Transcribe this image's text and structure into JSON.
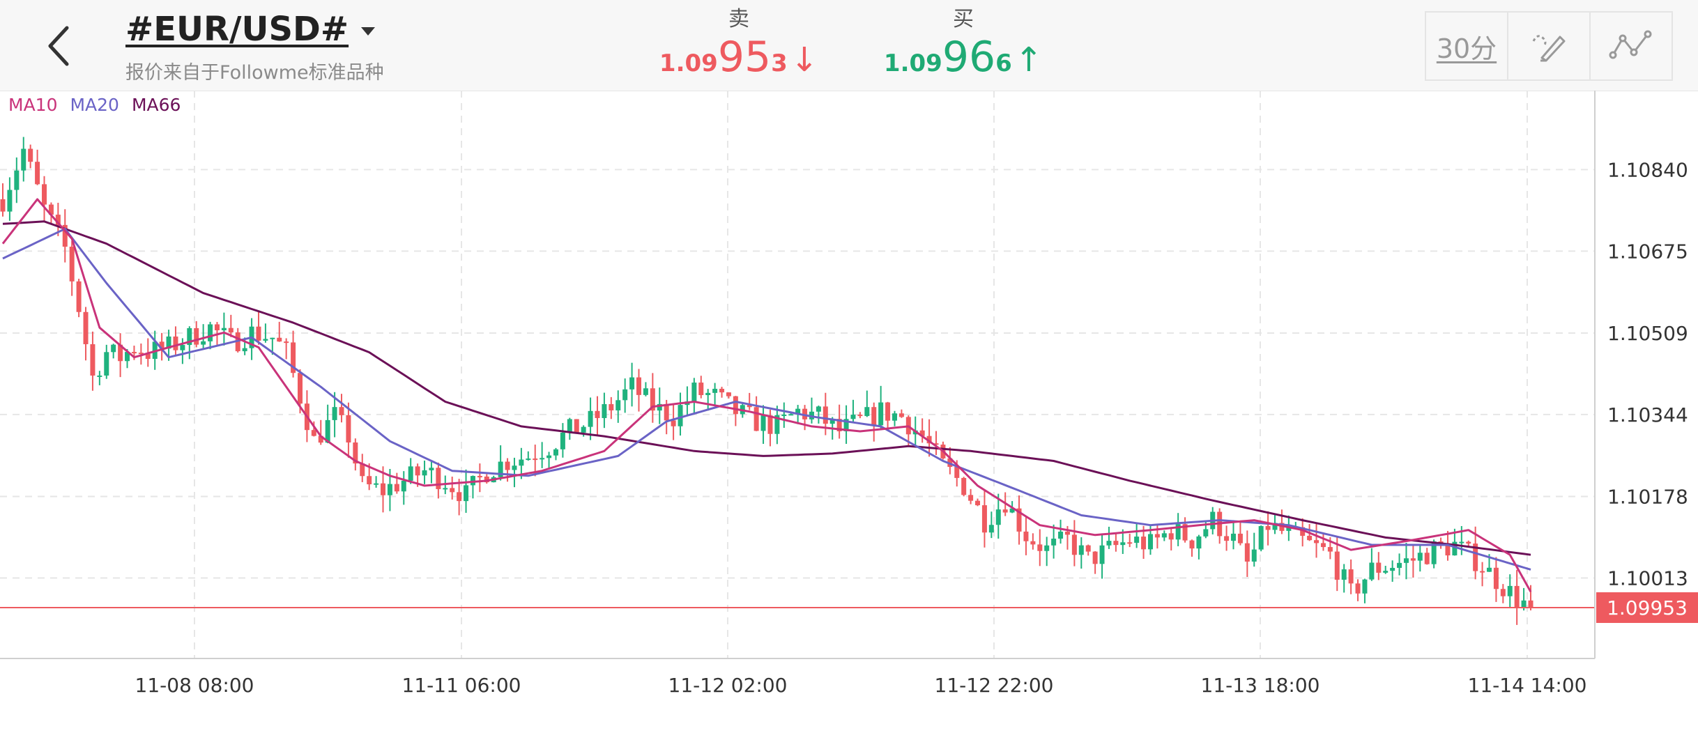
{
  "header": {
    "back_icon": "chevron-left-icon",
    "symbol": "#EUR/USD#",
    "subtitle": "报价来自于Followme标准品种",
    "sell": {
      "label": "卖",
      "prefix": "1.09",
      "big": "95",
      "suffix": "3",
      "arrow": "↓",
      "color": "#ee5a5f"
    },
    "buy": {
      "label": "买",
      "prefix": "1.09",
      "big": "96",
      "suffix": "6",
      "arrow": "↑",
      "color": "#1faa74"
    },
    "period": "30分",
    "draw_icon": "pen-draw-icon",
    "indicator_icon": "line-indicator-icon"
  },
  "legend": [
    {
      "label": "MA10",
      "color": "#c9337a"
    },
    {
      "label": "MA20",
      "color": "#6a63c6"
    },
    {
      "label": "MA66",
      "color": "#6b1057"
    }
  ],
  "chart_data": {
    "type": "candlestick",
    "x_tick_labels": [
      "11-08 08:00",
      "11-11 06:00",
      "11-12 02:00",
      "11-12 22:00",
      "11-13 18:00",
      "11-14 14:00"
    ],
    "y_tick_labels": [
      "1.10840",
      "1.10675",
      "1.10509",
      "1.10344",
      "1.10178",
      "1.10013"
    ],
    "ylim": [
      1.0985,
      1.11
    ],
    "current_price": "1.09953",
    "current_price_value": 1.09953,
    "colors": {
      "up": "#1fb27e",
      "down": "#ee5a5f",
      "price_line": "#ee5a5f",
      "grid": "#e6e6e6"
    },
    "ma10_anchors": [
      [
        0,
        1.1069
      ],
      [
        5,
        1.1078
      ],
      [
        10,
        1.107
      ],
      [
        14,
        1.1052
      ],
      [
        19,
        1.1046
      ],
      [
        24,
        1.1048
      ],
      [
        32,
        1.1051
      ],
      [
        37,
        1.1048
      ],
      [
        46,
        1.103
      ],
      [
        51,
        1.1025
      ],
      [
        56,
        1.1022
      ],
      [
        61,
        1.102
      ],
      [
        70,
        1.1021
      ],
      [
        78,
        1.1023
      ],
      [
        87,
        1.1027
      ],
      [
        94,
        1.1036
      ],
      [
        100,
        1.1037
      ],
      [
        108,
        1.1035
      ],
      [
        117,
        1.1032
      ],
      [
        124,
        1.1031
      ],
      [
        131,
        1.1032
      ],
      [
        136,
        1.1027
      ],
      [
        141,
        1.102
      ],
      [
        150,
        1.1012
      ],
      [
        158,
        1.101
      ],
      [
        166,
        1.1011
      ],
      [
        173,
        1.1012
      ],
      [
        181,
        1.1013
      ],
      [
        188,
        1.1011
      ],
      [
        195,
        1.1007
      ],
      [
        204,
        1.1009
      ],
      [
        212,
        1.1011
      ],
      [
        218,
        1.1006
      ],
      [
        221,
        1.09985
      ]
    ],
    "ma20_anchors": [
      [
        0,
        1.1066
      ],
      [
        9,
        1.1072
      ],
      [
        15,
        1.1061
      ],
      [
        24,
        1.1046
      ],
      [
        36,
        1.105
      ],
      [
        46,
        1.104
      ],
      [
        56,
        1.1029
      ],
      [
        65,
        1.1023
      ],
      [
        76,
        1.1022
      ],
      [
        89,
        1.1026
      ],
      [
        96,
        1.1033
      ],
      [
        106,
        1.1037
      ],
      [
        117,
        1.1034
      ],
      [
        127,
        1.1032
      ],
      [
        136,
        1.1025
      ],
      [
        147,
        1.1019
      ],
      [
        156,
        1.1014
      ],
      [
        166,
        1.1012
      ],
      [
        176,
        1.1013
      ],
      [
        186,
        1.1012
      ],
      [
        198,
        1.1008
      ],
      [
        209,
        1.1008
      ],
      [
        221,
        1.1003
      ]
    ],
    "ma66_anchors": [
      [
        0,
        1.1073
      ],
      [
        6,
        1.10735
      ],
      [
        15,
        1.1069
      ],
      [
        29,
        1.1059
      ],
      [
        42,
        1.1053
      ],
      [
        53,
        1.1047
      ],
      [
        64,
        1.1037
      ],
      [
        75,
        1.1032
      ],
      [
        87,
        1.103
      ],
      [
        100,
        1.1027
      ],
      [
        110,
        1.1026
      ],
      [
        120,
        1.10265
      ],
      [
        131,
        1.1028
      ],
      [
        140,
        1.1027
      ],
      [
        152,
        1.1025
      ],
      [
        163,
        1.1021
      ],
      [
        175,
        1.1017
      ],
      [
        188,
        1.1013
      ],
      [
        200,
        1.10095
      ],
      [
        210,
        1.1008
      ],
      [
        221,
        1.1006
      ]
    ],
    "price_anchors": [
      [
        0,
        1.1078
      ],
      [
        3,
        1.1088
      ],
      [
        6,
        1.1076
      ],
      [
        9,
        1.1068
      ],
      [
        11,
        1.1056
      ],
      [
        13,
        1.1042
      ],
      [
        15,
        1.1047
      ],
      [
        17,
        1.1046
      ],
      [
        19,
        1.1048
      ],
      [
        21,
        1.1047
      ],
      [
        24,
        1.1048
      ],
      [
        27,
        1.105
      ],
      [
        30,
        1.1052
      ],
      [
        33,
        1.1049
      ],
      [
        36,
        1.1051
      ],
      [
        39,
        1.105
      ],
      [
        41,
        1.1047
      ],
      [
        43,
        1.1038
      ],
      [
        45,
        1.1029
      ],
      [
        48,
        1.1034
      ],
      [
        50,
        1.103
      ],
      [
        52,
        1.102
      ],
      [
        55,
        1.1019
      ],
      [
        58,
        1.1021
      ],
      [
        61,
        1.1023
      ],
      [
        64,
        1.1021
      ],
      [
        67,
        1.1018
      ],
      [
        70,
        1.1023
      ],
      [
        73,
        1.1025
      ],
      [
        76,
        1.1026
      ],
      [
        79,
        1.1028
      ],
      [
        82,
        1.1031
      ],
      [
        85,
        1.1033
      ],
      [
        88,
        1.1036
      ],
      [
        91,
        1.104
      ],
      [
        94,
        1.1036
      ],
      [
        97,
        1.1034
      ],
      [
        100,
        1.1039
      ],
      [
        103,
        1.1038
      ],
      [
        106,
        1.1035
      ],
      [
        109,
        1.1033
      ],
      [
        112,
        1.1032
      ],
      [
        115,
        1.1035
      ],
      [
        118,
        1.1034
      ],
      [
        121,
        1.1031
      ],
      [
        124,
        1.1033
      ],
      [
        127,
        1.1035
      ],
      [
        130,
        1.1034
      ],
      [
        133,
        1.103
      ],
      [
        136,
        1.1024
      ],
      [
        139,
        1.102
      ],
      [
        142,
        1.1013
      ],
      [
        145,
        1.1017
      ],
      [
        148,
        1.101
      ],
      [
        151,
        1.1007
      ],
      [
        154,
        1.1009
      ],
      [
        157,
        1.1005
      ],
      [
        160,
        1.1007
      ],
      [
        163,
        1.1009
      ],
      [
        166,
        1.1008
      ],
      [
        169,
        1.1011
      ],
      [
        172,
        1.1009
      ],
      [
        175,
        1.1013
      ],
      [
        178,
        1.1009
      ],
      [
        180,
        1.1004
      ],
      [
        183,
        1.1012
      ],
      [
        186,
        1.101
      ],
      [
        189,
        1.1008
      ],
      [
        192,
        1.1006
      ],
      [
        195,
        1.0998
      ],
      [
        198,
        1.1003
      ],
      [
        201,
        1.1004
      ],
      [
        204,
        1.1005
      ],
      [
        207,
        1.1007
      ],
      [
        210,
        1.1008
      ],
      [
        213,
        1.1005
      ],
      [
        216,
        1.1001
      ],
      [
        219,
        1.0997
      ],
      [
        221,
        1.09953
      ]
    ]
  }
}
